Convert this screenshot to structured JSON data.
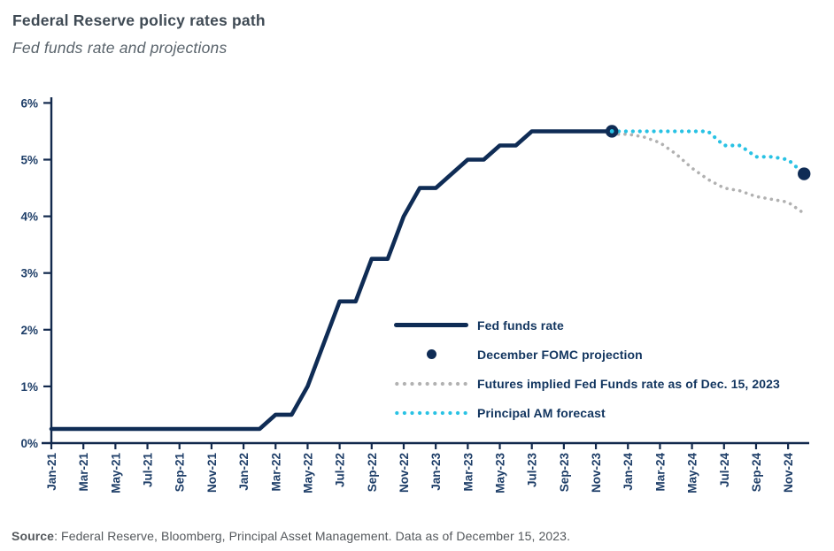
{
  "header": {
    "title": "Federal Reserve policy rates path",
    "subtitle": "Fed funds rate and projections"
  },
  "footer": {
    "source_label": "Source",
    "source_text": ": Federal Reserve, Bloomberg, Principal Asset Management. Data as of December 15, 2023."
  },
  "colors": {
    "navy": "#0f2c55",
    "cyan": "#29c2e4",
    "gray": "#b1b1b1",
    "axis": "#12294d",
    "tick_label": "#1e3e68",
    "title": "#3f4a54",
    "subtitle": "#5a646c",
    "source": "#54585c"
  },
  "chart_data": {
    "type": "line",
    "title": "Federal Reserve policy rates path",
    "subtitle": "Fed funds rate and projections",
    "ylabel": "",
    "xlabel": "",
    "ylim": [
      0,
      6
    ],
    "grid": false,
    "legend_position": "inside-center-right",
    "y_tick_labels": [
      "0%",
      "1%",
      "2%",
      "3%",
      "4%",
      "5%",
      "6%"
    ],
    "x_tick_labels": [
      "Jan-21",
      "Mar-21",
      "May-21",
      "Jul-21",
      "Sep-21",
      "Nov-21",
      "Jan-22",
      "Mar-22",
      "May-22",
      "Jul-22",
      "Sep-22",
      "Nov-22",
      "Jan-23",
      "Mar-23",
      "May-23",
      "Jul-23",
      "Sep-23",
      "Nov-23",
      "Jan-24",
      "Mar-24",
      "May-24",
      "Jul-24",
      "Sep-24",
      "Nov-24"
    ],
    "x_months_per_tick": 2,
    "x_month_index_start_label": "Jan-21",
    "x_month_index_end": 47,
    "series": [
      {
        "name": "Fed funds rate",
        "line_style": "solid",
        "color_key": "navy",
        "start_month_index": 0,
        "unit": "percent",
        "values": [
          0.25,
          0.25,
          0.25,
          0.25,
          0.25,
          0.25,
          0.25,
          0.25,
          0.25,
          0.25,
          0.25,
          0.25,
          0.25,
          0.25,
          0.5,
          0.5,
          1.0,
          1.75,
          2.5,
          2.5,
          3.25,
          3.25,
          4.0,
          4.5,
          4.5,
          4.75,
          5.0,
          5.0,
          5.25,
          5.25,
          5.5,
          5.5,
          5.5,
          5.5,
          5.5,
          5.5
        ]
      },
      {
        "name": "Futures implied Fed Funds rate as of Dec. 15, 2023",
        "line_style": "dotted",
        "color_key": "gray",
        "start_month_index": 35,
        "unit": "percent",
        "values": [
          5.45,
          5.45,
          5.4,
          5.3,
          5.1,
          4.85,
          4.65,
          4.5,
          4.45,
          4.35,
          4.3,
          4.25,
          4.05
        ]
      },
      {
        "name": "Principal AM forecast",
        "line_style": "dotted",
        "color_key": "cyan",
        "start_month_index": 35,
        "unit": "percent",
        "values": [
          5.5,
          5.5,
          5.5,
          5.5,
          5.5,
          5.5,
          5.5,
          5.25,
          5.25,
          5.05,
          5.05,
          5.0,
          4.75
        ]
      }
    ],
    "markers": [
      {
        "name": "Fed funds rate endpoint dot",
        "month": "Dec-23",
        "month_index": 35,
        "value": 5.5
      },
      {
        "name": "December FOMC projection",
        "month": "Dec-24",
        "month_index": 47,
        "value": 4.75
      }
    ],
    "legend": [
      {
        "label": "Fed funds rate",
        "swatch": "solid-line",
        "color_key": "navy"
      },
      {
        "label": "December FOMC projection",
        "swatch": "dot",
        "color_key": "navy"
      },
      {
        "label": "Futures implied Fed Funds rate as of Dec. 15, 2023",
        "swatch": "dotted-line",
        "color_key": "gray"
      },
      {
        "label": "Principal AM forecast",
        "swatch": "dotted-line",
        "color_key": "cyan"
      }
    ]
  }
}
